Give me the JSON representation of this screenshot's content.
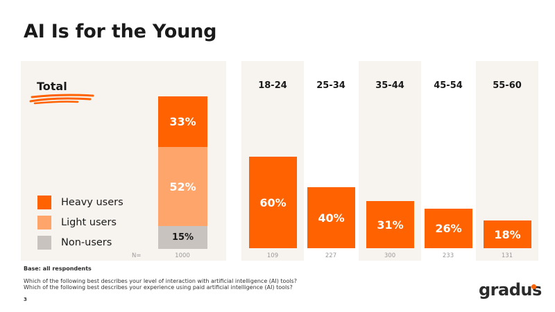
{
  "slide": {
    "title": "AI Is for the Young",
    "page_number": "3"
  },
  "colors": {
    "heavy": "#ff6200",
    "light": "#fea56c",
    "non": "#c8c3bf",
    "panel": "#f7f3ef"
  },
  "legend": [
    {
      "label": "Heavy users",
      "color": "#ff6200"
    },
    {
      "label": "Light users",
      "color": "#fea56c"
    },
    {
      "label": "Non-users",
      "color": "#c8c3bf"
    }
  ],
  "chart_data": [
    {
      "type": "bar",
      "stacked": true,
      "title": "",
      "category": "Total",
      "n_prefix": "N=",
      "n": "1000",
      "segments": [
        {
          "name": "Heavy users",
          "value": 33,
          "label": "33%"
        },
        {
          "name": "Light users",
          "value": 52,
          "label": "52%"
        },
        {
          "name": "Non-users",
          "value": 15,
          "label": "15%"
        }
      ]
    },
    {
      "type": "bar",
      "title": "",
      "series_name": "Heavy users",
      "ylim": [
        0,
        100
      ],
      "categories": [
        "18-24",
        "25-34",
        "35-44",
        "45-54",
        "55-60"
      ],
      "values": [
        60,
        40,
        31,
        26,
        18
      ],
      "value_labels": [
        "60%",
        "40%",
        "31%",
        "26%",
        "18%"
      ],
      "n": [
        "109",
        "227",
        "300",
        "233",
        "131"
      ]
    }
  ],
  "footer": {
    "base": "Base: all respondents",
    "questions": [
      "Which of the following best describes your level of interaction with artificial intelligence (AI) tools?",
      "Which of the following best describes your experience using paid artificial intelligence (AI) tools?"
    ]
  },
  "logo": {
    "text": "gradus"
  }
}
